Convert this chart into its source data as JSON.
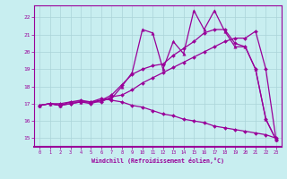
{
  "bg_color": "#c8eef0",
  "grid_color": "#aad4d8",
  "line_color": "#990099",
  "xlabel": "Windchill (Refroidissement éolien,°C)",
  "xlim": [
    -0.5,
    23.5
  ],
  "ylim": [
    14.5,
    22.7
  ],
  "yticks": [
    15,
    16,
    17,
    18,
    19,
    20,
    21,
    22
  ],
  "xticks": [
    0,
    1,
    2,
    3,
    4,
    5,
    6,
    7,
    8,
    9,
    10,
    11,
    12,
    13,
    14,
    15,
    16,
    17,
    18,
    19,
    20,
    21,
    22,
    23
  ],
  "series1_x": [
    0,
    1,
    2,
    3,
    4,
    5,
    6,
    7,
    8,
    9,
    10,
    11,
    12,
    13,
    14,
    15,
    16,
    17,
    18,
    19,
    20,
    21,
    22,
    23
  ],
  "series1_y": [
    16.9,
    17.0,
    16.9,
    17.1,
    17.1,
    17.1,
    17.2,
    17.3,
    18.0,
    18.8,
    21.3,
    21.1,
    19.0,
    20.6,
    19.9,
    22.4,
    21.3,
    22.4,
    21.2,
    20.3,
    20.3,
    19.0,
    16.1,
    14.9
  ],
  "series2_x": [
    0,
    1,
    2,
    3,
    4,
    5,
    6,
    7,
    8,
    9,
    10,
    11,
    12,
    13,
    14,
    15,
    16,
    17,
    18,
    19,
    20,
    21,
    22,
    23
  ],
  "series2_y": [
    16.9,
    17.0,
    16.9,
    17.0,
    17.1,
    17.0,
    17.2,
    17.5,
    18.1,
    18.7,
    19.0,
    19.2,
    19.3,
    19.8,
    20.2,
    20.6,
    21.1,
    21.3,
    21.3,
    20.5,
    20.3,
    19.0,
    16.1,
    14.9
  ],
  "series3_x": [
    0,
    1,
    2,
    3,
    4,
    5,
    6,
    7,
    8,
    9,
    10,
    11,
    12,
    13,
    14,
    15,
    16,
    17,
    18,
    19,
    20,
    21,
    22,
    23
  ],
  "series3_y": [
    16.9,
    17.0,
    17.0,
    17.1,
    17.2,
    17.1,
    17.1,
    17.4,
    17.5,
    17.8,
    18.2,
    18.5,
    18.8,
    19.1,
    19.4,
    19.7,
    20.0,
    20.3,
    20.6,
    20.8,
    20.8,
    21.2,
    19.0,
    14.9
  ],
  "series4_x": [
    0,
    1,
    2,
    3,
    4,
    5,
    6,
    7,
    8,
    9,
    10,
    11,
    12,
    13,
    14,
    15,
    16,
    17,
    18,
    19,
    20,
    21,
    22,
    23
  ],
  "series4_y": [
    16.9,
    17.0,
    16.9,
    17.0,
    17.1,
    17.1,
    17.3,
    17.2,
    17.1,
    16.9,
    16.8,
    16.6,
    16.4,
    16.3,
    16.1,
    16.0,
    15.9,
    15.7,
    15.6,
    15.5,
    15.4,
    15.3,
    15.2,
    15.0
  ]
}
